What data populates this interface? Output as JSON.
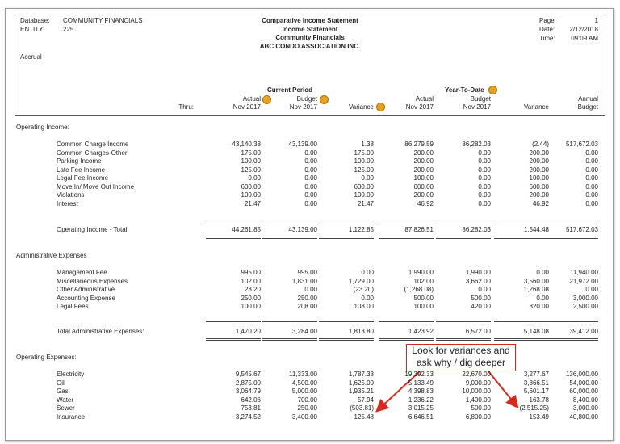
{
  "header": {
    "left": [
      {
        "label": "Database:",
        "value": "COMMUNITY FINANCIALS"
      },
      {
        "label": "ENTITY:",
        "value": "225"
      }
    ],
    "basis": "Accrual",
    "titles": [
      "Comparative Income Statement",
      "Income Statement",
      "Community Financials",
      "ABC CONDO ASSOCIATION INC."
    ],
    "right": [
      {
        "label": "Page:",
        "value": "1"
      },
      {
        "label": "Date:",
        "value": "2/12/2018"
      },
      {
        "label": "Time:",
        "value": "09:09 AM"
      }
    ]
  },
  "columns": {
    "groups": [
      "Current Period",
      "Year-To-Date"
    ],
    "thru": "Thru:",
    "headers": [
      [
        "Actual",
        "Nov 2017"
      ],
      [
        "Budget",
        "Nov 2017"
      ],
      [
        "Variance"
      ],
      [
        "Actual",
        "Nov 2017"
      ],
      [
        "Budget",
        "Nov 2017"
      ],
      [
        "Variance"
      ],
      [
        "Annual",
        "Budget"
      ]
    ]
  },
  "sections": [
    {
      "title": "Operating Income:",
      "rows": [
        {
          "label": "Common Charge Income",
          "values": [
            "43,140.38",
            "43,139.00",
            "1.38",
            "86,279.59",
            "86,282.03",
            "(2.44)",
            "517,672.03"
          ]
        },
        {
          "label": "Common Charges-Other",
          "values": [
            "175.00",
            "0.00",
            "175.00",
            "200.00",
            "0.00",
            "200.00",
            "0.00"
          ]
        },
        {
          "label": "Parking Income",
          "values": [
            "100.00",
            "0.00",
            "100.00",
            "200.00",
            "0.00",
            "200.00",
            "0.00"
          ]
        },
        {
          "label": "Late Fee Income",
          "values": [
            "125.00",
            "0.00",
            "125.00",
            "200.00",
            "0.00",
            "200.00",
            "0.00"
          ]
        },
        {
          "label": "Legal Fee Income",
          "values": [
            "0.00",
            "0.00",
            "0.00",
            "100.00",
            "0.00",
            "100.00",
            "0.00"
          ]
        },
        {
          "label": "Move In/ Move Out Income",
          "values": [
            "600.00",
            "0.00",
            "600.00",
            "600.00",
            "0.00",
            "600.00",
            "0.00"
          ]
        },
        {
          "label": "Violations",
          "values": [
            "100.00",
            "0.00",
            "100.00",
            "200.00",
            "0.00",
            "200.00",
            "0.00"
          ]
        },
        {
          "label": "Interest",
          "values": [
            "21.47",
            "0.00",
            "21.47",
            "46.92",
            "0.00",
            "46.92",
            "0.00"
          ]
        }
      ],
      "total": {
        "label": "Operating Income - Total",
        "values": [
          "44,261.85",
          "43,139.00",
          "1,122.85",
          "87,826.51",
          "86,282.03",
          "1,544.48",
          "517,672.03"
        ]
      }
    },
    {
      "title": "Administrative Expenses",
      "rows": [
        {
          "label": "Management Fee",
          "values": [
            "995.00",
            "995.00",
            "0.00",
            "1,990.00",
            "1,990.00",
            "0.00",
            "11,940.00"
          ]
        },
        {
          "label": "Miscellaneous Expenses",
          "values": [
            "102.00",
            "1,831.00",
            "1,729.00",
            "102.00",
            "3,662.00",
            "3,560.00",
            "21,972.00"
          ]
        },
        {
          "label": "Other Administrative",
          "values": [
            "23.20",
            "0.00",
            "(23.20)",
            "(1,268.08)",
            "0.00",
            "1,268.08",
            "0.00"
          ]
        },
        {
          "label": "Accounting Expense",
          "values": [
            "250.00",
            "250.00",
            "0.00",
            "500.00",
            "500.00",
            "0.00",
            "3,000.00"
          ]
        },
        {
          "label": "Legal Fees",
          "values": [
            "100.00",
            "208.00",
            "108.00",
            "100.00",
            "420.00",
            "320.00",
            "2,500.00"
          ]
        }
      ],
      "total": {
        "label": "Total Administrative Expenses:",
        "values": [
          "1,470.20",
          "3,284.00",
          "1,813.80",
          "1,423.92",
          "6,572.00",
          "5,148.08",
          "39,412.00"
        ]
      }
    },
    {
      "title": "Operating  Expenses:",
      "rows": [
        {
          "label": "Electricity",
          "values": [
            "9,545.67",
            "11,333.00",
            "1,787.33",
            "19,392.33",
            "22,670.00",
            "3,277.67",
            "136,000.00"
          ]
        },
        {
          "label": "Oil",
          "values": [
            "2,875.00",
            "4,500.00",
            "1,625.00",
            "5,133.49",
            "9,000.00",
            "3,866.51",
            "54,000.00"
          ]
        },
        {
          "label": "Gas",
          "values": [
            "3,064.79",
            "5,000.00",
            "1,935.21",
            "4,398.83",
            "10,000.00",
            "5,601.17",
            "60,000.00"
          ]
        },
        {
          "label": "Water",
          "values": [
            "642.06",
            "700.00",
            "57.94",
            "1,236.22",
            "1,400.00",
            "163.78",
            "8,400.00"
          ]
        },
        {
          "label": "Sewer",
          "values": [
            "753.81",
            "250.00",
            "(503.81)",
            "3,015.25",
            "500.00",
            "(2,515.25)",
            "3,000.00"
          ]
        },
        {
          "label": "Insurance",
          "values": [
            "3,274.52",
            "3,400.00",
            "125.48",
            "6,646.51",
            "6,800.00",
            "153.49",
            "40,800.00"
          ]
        }
      ]
    }
  ],
  "annotation": [
    "Look for variances and",
    "ask why / dig deeper"
  ]
}
